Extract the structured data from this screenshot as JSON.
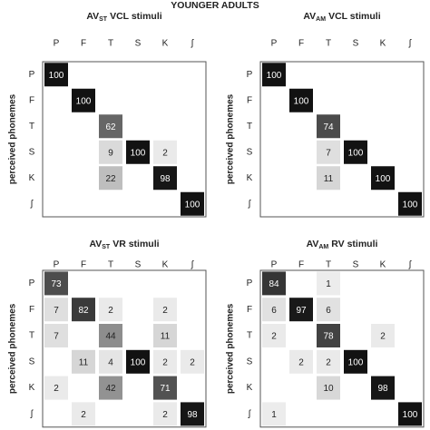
{
  "chart_data": {
    "type": "heatmap",
    "title": "YOUNGER ADULTS",
    "columns": [
      "P",
      "F",
      "T",
      "S",
      "K",
      "ʃ"
    ],
    "rows": [
      "P",
      "F",
      "T",
      "S",
      "K",
      "ʃ"
    ],
    "y_label": "perceived phonemes",
    "panels": [
      {
        "title": {
          "main": "AV",
          "sub": "ST",
          "rest": "VCL stimuli"
        },
        "values": [
          [
            100,
            null,
            null,
            null,
            null,
            null
          ],
          [
            null,
            100,
            null,
            null,
            null,
            null
          ],
          [
            null,
            null,
            62,
            null,
            null,
            null
          ],
          [
            null,
            null,
            9,
            100,
            2,
            null
          ],
          [
            null,
            null,
            22,
            null,
            98,
            null
          ],
          [
            null,
            null,
            null,
            null,
            null,
            100
          ]
        ]
      },
      {
        "title": {
          "main": "AV",
          "sub": "AM",
          "rest": "VCL stimuli"
        },
        "values": [
          [
            100,
            null,
            null,
            null,
            null,
            null
          ],
          [
            null,
            100,
            null,
            null,
            null,
            null
          ],
          [
            null,
            null,
            74,
            null,
            null,
            null
          ],
          [
            null,
            null,
            7,
            100,
            null,
            null
          ],
          [
            null,
            null,
            11,
            null,
            100,
            null
          ],
          [
            null,
            null,
            null,
            null,
            null,
            100
          ]
        ]
      },
      {
        "title": {
          "main": "AV",
          "sub": "ST",
          "rest": "VR stimuli"
        },
        "values": [
          [
            73,
            null,
            null,
            null,
            null,
            null
          ],
          [
            7,
            82,
            2,
            null,
            2,
            null
          ],
          [
            7,
            null,
            44,
            null,
            11,
            null
          ],
          [
            null,
            11,
            4,
            100,
            2,
            2
          ],
          [
            2,
            null,
            42,
            null,
            71,
            null
          ],
          [
            null,
            2,
            null,
            null,
            2,
            98
          ]
        ]
      },
      {
        "title": {
          "main": "AV",
          "sub": "AM",
          "rest": "RV stimuli"
        },
        "values": [
          [
            84,
            null,
            1,
            null,
            null,
            null
          ],
          [
            6,
            97,
            6,
            null,
            null,
            null
          ],
          [
            2,
            null,
            78,
            null,
            2,
            null
          ],
          [
            null,
            2,
            2,
            100,
            null,
            null
          ],
          [
            null,
            null,
            10,
            null,
            98,
            null
          ],
          [
            1,
            null,
            null,
            null,
            null,
            100
          ]
        ]
      }
    ]
  }
}
